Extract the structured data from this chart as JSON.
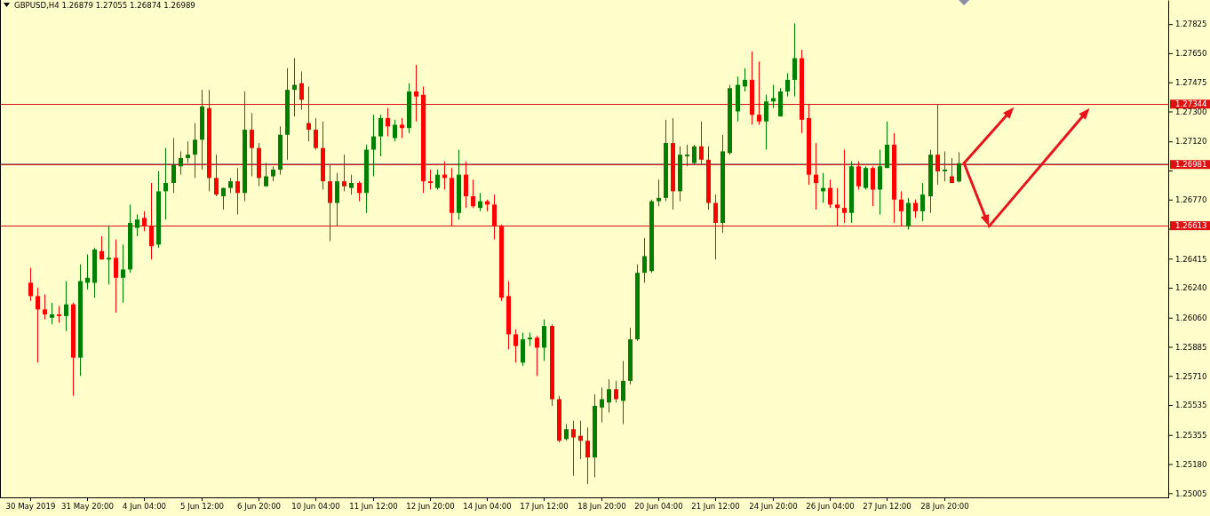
{
  "chart_data": {
    "type": "candlestick",
    "title": "GBPUSD,H4 1.26879 1.27055 1.26874 1.26989",
    "categories": [
      "30 May 2019",
      null,
      null,
      null,
      null,
      null,
      null,
      null,
      "31 May 20:00",
      null,
      null,
      null,
      null,
      null,
      null,
      null,
      "4 Jun 04:00",
      null,
      null,
      null,
      null,
      null,
      null,
      null,
      "5 Jun 12:00",
      null,
      null,
      null,
      null,
      null,
      null,
      null,
      "6 Jun 20:00",
      null,
      null,
      null,
      null,
      null,
      null,
      null,
      "10 Jun 04:00",
      null,
      null,
      null,
      null,
      null,
      null,
      null,
      "11 Jun 12:00",
      null,
      null,
      null,
      null,
      null,
      null,
      null,
      "12 Jun 20:00",
      null,
      null,
      null,
      null,
      null,
      null,
      null,
      "14 Jun 04:00",
      null,
      null,
      null,
      null,
      null,
      null,
      null,
      "17 Jun 12:00",
      null,
      null,
      null,
      null,
      null,
      null,
      null,
      "18 Jun 20:00",
      null,
      null,
      null,
      null,
      null,
      null,
      null,
      "20 Jun 04:00",
      null,
      null,
      null,
      null,
      null,
      null,
      null,
      "21 Jun 12:00",
      null,
      null,
      null,
      null,
      null,
      null,
      null,
      "24 Jun 20:00",
      null,
      null,
      null,
      null,
      null,
      null,
      null,
      "26 Jun 04:00",
      null,
      null,
      null,
      null,
      null,
      null,
      null,
      "27 Jun 12:00",
      null,
      null,
      null,
      null,
      null,
      null,
      null,
      "28 Jun 20:00",
      null,
      null,
      null,
      null,
      null,
      null,
      null,
      null,
      null,
      null,
      null,
      null,
      null,
      null,
      null,
      null,
      null,
      null,
      null,
      null,
      null,
      null,
      null,
      null,
      null,
      null,
      null,
      null,
      null,
      null,
      null
    ],
    "ohlc": [
      [
        1.2627,
        1.2636,
        1.2616,
        1.2619
      ],
      [
        1.2619,
        1.2624,
        1.2579,
        1.2611
      ],
      [
        1.2611,
        1.262,
        1.2605,
        1.2608
      ],
      [
        1.2606,
        1.2615,
        1.2602,
        1.2608
      ],
      [
        1.2608,
        1.2613,
        1.2603,
        1.2607
      ],
      [
        1.2607,
        1.2628,
        1.2598,
        1.2614
      ],
      [
        1.2614,
        1.2615,
        1.2559,
        1.2582
      ],
      [
        1.2582,
        1.2638,
        1.2571,
        1.2628
      ],
      [
        1.2627,
        1.2644,
        1.2623,
        1.263
      ],
      [
        1.2627,
        1.2648,
        1.2618,
        1.2647
      ],
      [
        1.2646,
        1.2655,
        1.2641,
        1.2641
      ],
      [
        1.2641,
        1.2661,
        1.2626,
        1.2642
      ],
      [
        1.2642,
        1.2653,
        1.2609,
        1.263
      ],
      [
        1.263,
        1.265,
        1.2615,
        1.2635
      ],
      [
        1.2635,
        1.2674,
        1.2633,
        1.2663
      ],
      [
        1.266,
        1.2668,
        1.2655,
        1.2665
      ],
      [
        1.2666,
        1.267,
        1.2658,
        1.2661
      ],
      [
        1.2661,
        1.2687,
        1.2641,
        1.2649
      ],
      [
        1.265,
        1.2694,
        1.2648,
        1.2682
      ],
      [
        1.2682,
        1.2708,
        1.2665,
        1.2687
      ],
      [
        1.2687,
        1.2714,
        1.2681,
        1.2698
      ],
      [
        1.2697,
        1.2706,
        1.2692,
        1.2702
      ],
      [
        1.2702,
        1.2712,
        1.2699,
        1.2704
      ],
      [
        1.2704,
        1.2723,
        1.269,
        1.2713
      ],
      [
        1.2713,
        1.2743,
        1.2695,
        1.2733
      ],
      [
        1.2732,
        1.2743,
        1.2682,
        1.269
      ],
      [
        1.269,
        1.2704,
        1.2679,
        1.268
      ],
      [
        1.2679,
        1.2684,
        1.2671,
        1.2684
      ],
      [
        1.2684,
        1.269,
        1.2681,
        1.2688
      ],
      [
        1.2688,
        1.2696,
        1.2668,
        1.2681
      ],
      [
        1.2681,
        1.2742,
        1.2676,
        1.2719
      ],
      [
        1.2719,
        1.2729,
        1.2691,
        1.2708
      ],
      [
        1.2708,
        1.2711,
        1.2685,
        1.269
      ],
      [
        1.2685,
        1.2699,
        1.2685,
        1.2691
      ],
      [
        1.2691,
        1.2697,
        1.2688,
        1.2695
      ],
      [
        1.2695,
        1.2721,
        1.2692,
        1.2716
      ],
      [
        1.2716,
        1.2756,
        1.2701,
        1.2743
      ],
      [
        1.2743,
        1.2762,
        1.2727,
        1.2746
      ],
      [
        1.2747,
        1.2754,
        1.2731,
        1.2737
      ],
      [
        1.2723,
        1.2745,
        1.2712,
        1.2719
      ],
      [
        1.2719,
        1.2726,
        1.2707,
        1.2708
      ],
      [
        1.2708,
        1.2724,
        1.2683,
        1.2688
      ],
      [
        1.2688,
        1.2698,
        1.2652,
        1.2675
      ],
      [
        1.2675,
        1.2693,
        1.2661,
        1.2688
      ],
      [
        1.2688,
        1.2704,
        1.2682,
        1.2685
      ],
      [
        1.2684,
        1.2692,
        1.268,
        1.2687
      ],
      [
        1.2687,
        1.2688,
        1.2676,
        1.2681
      ],
      [
        1.2681,
        1.271,
        1.2669,
        1.2707
      ],
      [
        1.2707,
        1.2728,
        1.2691,
        1.2715
      ],
      [
        1.2715,
        1.2728,
        1.2703,
        1.2726
      ],
      [
        1.2726,
        1.2732,
        1.2715,
        1.2721
      ],
      [
        1.2714,
        1.2725,
        1.2712,
        1.2722
      ],
      [
        1.2722,
        1.2726,
        1.2714,
        1.272
      ],
      [
        1.272,
        1.2747,
        1.2717,
        1.2742
      ],
      [
        1.2742,
        1.2758,
        1.2724,
        1.2739
      ],
      [
        1.274,
        1.2745,
        1.2681,
        1.2688
      ],
      [
        1.2688,
        1.2695,
        1.2683,
        1.2687
      ],
      [
        1.2684,
        1.2695,
        1.2683,
        1.2692
      ],
      [
        1.2692,
        1.27,
        1.2683,
        1.269
      ],
      [
        1.269,
        1.2696,
        1.2661,
        1.2669
      ],
      [
        1.2669,
        1.2707,
        1.2665,
        1.2692
      ],
      [
        1.2692,
        1.27,
        1.2672,
        1.2679
      ],
      [
        1.2679,
        1.2689,
        1.2672,
        1.2673
      ],
      [
        1.2672,
        1.2681,
        1.267,
        1.2676
      ],
      [
        1.2676,
        1.2677,
        1.267,
        1.2674
      ],
      [
        1.2674,
        1.268,
        1.2653,
        1.2661
      ],
      [
        1.2661,
        1.2662,
        1.2616,
        1.2618
      ],
      [
        1.2619,
        1.2628,
        1.2587,
        1.2596
      ],
      [
        1.2596,
        1.2599,
        1.2579,
        1.2589
      ],
      [
        1.2579,
        1.2597,
        1.2577,
        1.2593
      ],
      [
        1.2593,
        1.2597,
        1.2589,
        1.2594
      ],
      [
        1.2594,
        1.2595,
        1.2571,
        1.2588
      ],
      [
        1.2588,
        1.2605,
        1.258,
        1.2601
      ],
      [
        1.2601,
        1.2602,
        1.2553,
        1.2557
      ],
      [
        1.2557,
        1.2559,
        1.2531,
        1.2532
      ],
      [
        1.2533,
        1.2542,
        1.2532,
        1.2539
      ],
      [
        1.2539,
        1.2544,
        1.2511,
        1.2534
      ],
      [
        1.2535,
        1.2544,
        1.2521,
        1.2532
      ],
      [
        1.2532,
        1.254,
        1.2506,
        1.2522
      ],
      [
        1.2522,
        1.256,
        1.251,
        1.2553
      ],
      [
        1.2552,
        1.2564,
        1.2543,
        1.2557
      ],
      [
        1.2555,
        1.2569,
        1.2549,
        1.2563
      ],
      [
        1.2563,
        1.2568,
        1.2555,
        1.2557
      ],
      [
        1.2556,
        1.258,
        1.2542,
        1.2568
      ],
      [
        1.2568,
        1.26,
        1.2566,
        1.2593
      ],
      [
        1.2593,
        1.2638,
        1.2592,
        1.2633
      ],
      [
        1.2633,
        1.2654,
        1.2627,
        1.2643
      ],
      [
        1.2634,
        1.2677,
        1.2633,
        1.2676
      ],
      [
        1.2676,
        1.2689,
        1.2673,
        1.2678
      ],
      [
        1.2678,
        1.2725,
        1.2676,
        1.2711
      ],
      [
        1.2711,
        1.2726,
        1.2671,
        1.2682
      ],
      [
        1.2682,
        1.2709,
        1.2676,
        1.2704
      ],
      [
        1.2703,
        1.271,
        1.2697,
        1.2704
      ],
      [
        1.2699,
        1.271,
        1.2698,
        1.2709
      ],
      [
        1.2709,
        1.2724,
        1.2698,
        1.2701
      ],
      [
        1.2701,
        1.2709,
        1.2671,
        1.2675
      ],
      [
        1.2675,
        1.268,
        1.2641,
        1.2663
      ],
      [
        1.2663,
        1.2716,
        1.2657,
        1.2706
      ],
      [
        1.2705,
        1.2746,
        1.2704,
        1.2744
      ],
      [
        1.273,
        1.2751,
        1.2724,
        1.2746
      ],
      [
        1.2745,
        1.2756,
        1.2742,
        1.2749
      ],
      [
        1.2749,
        1.2766,
        1.2722,
        1.2728
      ],
      [
        1.2728,
        1.276,
        1.2722,
        1.2724
      ],
      [
        1.2724,
        1.274,
        1.2707,
        1.2736
      ],
      [
        1.2736,
        1.2746,
        1.2732,
        1.2738
      ],
      [
        1.2727,
        1.2744,
        1.2727,
        1.2742
      ],
      [
        1.2742,
        1.2753,
        1.2739,
        1.2749
      ],
      [
        1.2749,
        1.2783,
        1.2739,
        1.2762
      ],
      [
        1.2762,
        1.2767,
        1.2717,
        1.2725
      ],
      [
        1.2726,
        1.2734,
        1.2686,
        1.2692
      ],
      [
        1.2692,
        1.2711,
        1.2671,
        1.2687
      ],
      [
        1.2682,
        1.2693,
        1.2675,
        1.2684
      ],
      [
        1.2684,
        1.2689,
        1.2672,
        1.2674
      ],
      [
        1.2674,
        1.2684,
        1.2661,
        1.2672
      ],
      [
        1.2672,
        1.2707,
        1.2663,
        1.2669
      ],
      [
        1.2669,
        1.27,
        1.2663,
        1.2697
      ],
      [
        1.2697,
        1.27,
        1.2683,
        1.2685
      ],
      [
        1.2684,
        1.2697,
        1.2683,
        1.2696
      ],
      [
        1.2696,
        1.2697,
        1.2673,
        1.2683
      ],
      [
        1.2683,
        1.2707,
        1.2668,
        1.2697
      ],
      [
        1.2696,
        1.2724,
        1.2696,
        1.271
      ],
      [
        1.271,
        1.2717,
        1.2663,
        1.2677
      ],
      [
        1.2677,
        1.2682,
        1.2661,
        1.267
      ],
      [
        1.2661,
        1.2678,
        1.2659,
        1.2675
      ],
      [
        1.2675,
        1.2677,
        1.2666,
        1.267
      ],
      [
        1.267,
        1.2687,
        1.2664,
        1.268
      ],
      [
        1.2679,
        1.2707,
        1.2669,
        1.2704
      ],
      [
        1.2704,
        1.2734,
        1.2686,
        1.2694
      ],
      [
        1.2694,
        1.2706,
        1.2688,
        1.2695
      ],
      [
        1.2691,
        1.2702,
        1.2687,
        1.2687
      ],
      [
        1.26879,
        1.27055,
        1.26874,
        1.26989
      ],
      null,
      null,
      null,
      null,
      null,
      null,
      null,
      null,
      null,
      null,
      null,
      null,
      null,
      null,
      null,
      null,
      null,
      null,
      null,
      null,
      null,
      null,
      null,
      null,
      null,
      null,
      null,
      null,
      null
    ],
    "colors": [
      "#ff0000",
      "#ff0000",
      "#ff0000",
      "#008000",
      "#ff0000",
      "#008000",
      "#ff0000",
      "#008000",
      "#008000",
      "#008000",
      "#ff0000",
      "#008000",
      "#ff0000",
      "#008000",
      "#008000",
      "#008000",
      "#ff0000",
      "#ff0000",
      "#008000",
      "#008000",
      "#008000",
      "#008000",
      "#008000",
      "#008000",
      "#008000",
      "#ff0000",
      "#ff0000",
      "#008000",
      "#008000",
      "#ff0000",
      "#008000",
      "#ff0000",
      "#ff0000",
      "#008000",
      "#008000",
      "#008000",
      "#008000",
      "#008000",
      "#ff0000",
      "#ff0000",
      "#ff0000",
      "#ff0000",
      "#ff0000",
      "#008000",
      "#ff0000",
      "#008000",
      "#ff0000",
      "#008000",
      "#008000",
      "#008000",
      "#ff0000",
      "#008000",
      "#ff0000",
      "#008000",
      "#ff0000",
      "#ff0000",
      "#ff0000",
      "#008000",
      "#ff0000",
      "#ff0000",
      "#008000",
      "#ff0000",
      "#ff0000",
      "#008000",
      "#ff0000",
      "#ff0000",
      "#ff0000",
      "#ff0000",
      "#ff0000",
      "#008000",
      "#008000",
      "#ff0000",
      "#008000",
      "#ff0000",
      "#ff0000",
      "#008000",
      "#ff0000",
      "#ff0000",
      "#ff0000",
      "#008000",
      "#008000",
      "#008000",
      "#ff0000",
      "#008000",
      "#008000",
      "#008000",
      "#008000",
      "#008000",
      "#008000",
      "#008000",
      "#ff0000",
      "#008000",
      "#008000",
      "#008000",
      "#ff0000",
      "#ff0000",
      "#ff0000",
      "#008000",
      "#008000",
      "#008000",
      "#008000",
      "#ff0000",
      "#ff0000",
      "#008000",
      "#008000",
      "#008000",
      "#008000",
      "#008000",
      "#ff0000",
      "#ff0000",
      "#ff0000",
      "#008000",
      "#ff0000",
      "#ff0000",
      "#ff0000",
      "#008000",
      "#ff0000",
      "#008000",
      "#ff0000",
      "#008000",
      "#008000",
      "#ff0000",
      "#ff0000",
      "#008000",
      "#ff0000",
      "#008000",
      "#008000",
      "#ff0000",
      "#008000",
      "#ff0000",
      "#008000",
      null,
      null,
      null,
      null,
      null,
      null,
      null,
      null,
      null,
      null,
      null,
      null,
      null,
      null,
      null,
      null,
      null,
      null,
      null,
      null,
      null,
      null,
      null,
      null,
      null,
      null,
      null,
      null,
      null
    ],
    "ylim": [
      1.2498,
      1.2797
    ],
    "yticks": [
      {
        "value": 1.27825,
        "label": "1.27825"
      },
      {
        "value": 1.2765,
        "label": "1.27650"
      },
      {
        "value": 1.27475,
        "label": "1.27475"
      },
      {
        "value": 1.273,
        "label": "1.27300"
      },
      {
        "value": 1.2712,
        "label": "1.27120"
      },
      {
        "value": 1.26945,
        "label": null
      },
      {
        "value": 1.2677,
        "label": "1.26770"
      },
      {
        "value": 1.26595,
        "label": null
      },
      {
        "value": 1.26415,
        "label": "1.26415"
      },
      {
        "value": 1.2624,
        "label": "1.26240"
      },
      {
        "value": 1.2606,
        "label": "1.26060"
      },
      {
        "value": 1.25885,
        "label": "1.25885"
      },
      {
        "value": 1.2571,
        "label": "1.25710"
      },
      {
        "value": 1.25535,
        "label": "1.25535"
      },
      {
        "value": 1.25355,
        "label": "1.25355"
      },
      {
        "value": 1.2518,
        "label": "1.25180"
      },
      {
        "value": 1.25005,
        "label": "1.25005"
      }
    ],
    "ref_lines": [
      {
        "axis": "y",
        "value": 1.26989,
        "color": "#9a9a9a"
      },
      {
        "axis": "y",
        "value": 1.27344,
        "label": "1.27344",
        "color": "#dd1111"
      },
      {
        "axis": "y",
        "value": 1.26981,
        "label": "1.26981",
        "color": "#dd1111"
      },
      {
        "axis": "y",
        "value": 1.26613,
        "label": "1.26613",
        "color": "#dd1111"
      }
    ]
  }
}
